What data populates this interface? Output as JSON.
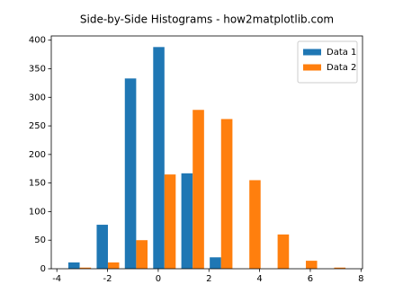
{
  "chart_data": {
    "type": "histogram",
    "title": "Side-by-Side Histograms - how2matplotlib.com",
    "bins": [
      -3.66,
      -2.54,
      -1.43,
      -0.31,
      0.8,
      1.92,
      3.04,
      4.15,
      5.27,
      6.38,
      7.5
    ],
    "series": [
      {
        "name": "Data 1",
        "color": "#1f77b4",
        "values": [
          11,
          77,
          333,
          388,
          167,
          20,
          0,
          0,
          0,
          0
        ]
      },
      {
        "name": "Data 2",
        "color": "#ff7f0e",
        "values": [
          2,
          11,
          50,
          165,
          278,
          262,
          155,
          60,
          14,
          2
        ]
      }
    ],
    "xlim": [
      -4.22,
      8.06
    ],
    "xticks": [
      -4,
      -2,
      0,
      2,
      4,
      6,
      8
    ],
    "ylim": [
      0,
      407.4
    ],
    "yticks": [
      0,
      50,
      100,
      150,
      200,
      250,
      300,
      350,
      400
    ],
    "legend": "upper right"
  }
}
